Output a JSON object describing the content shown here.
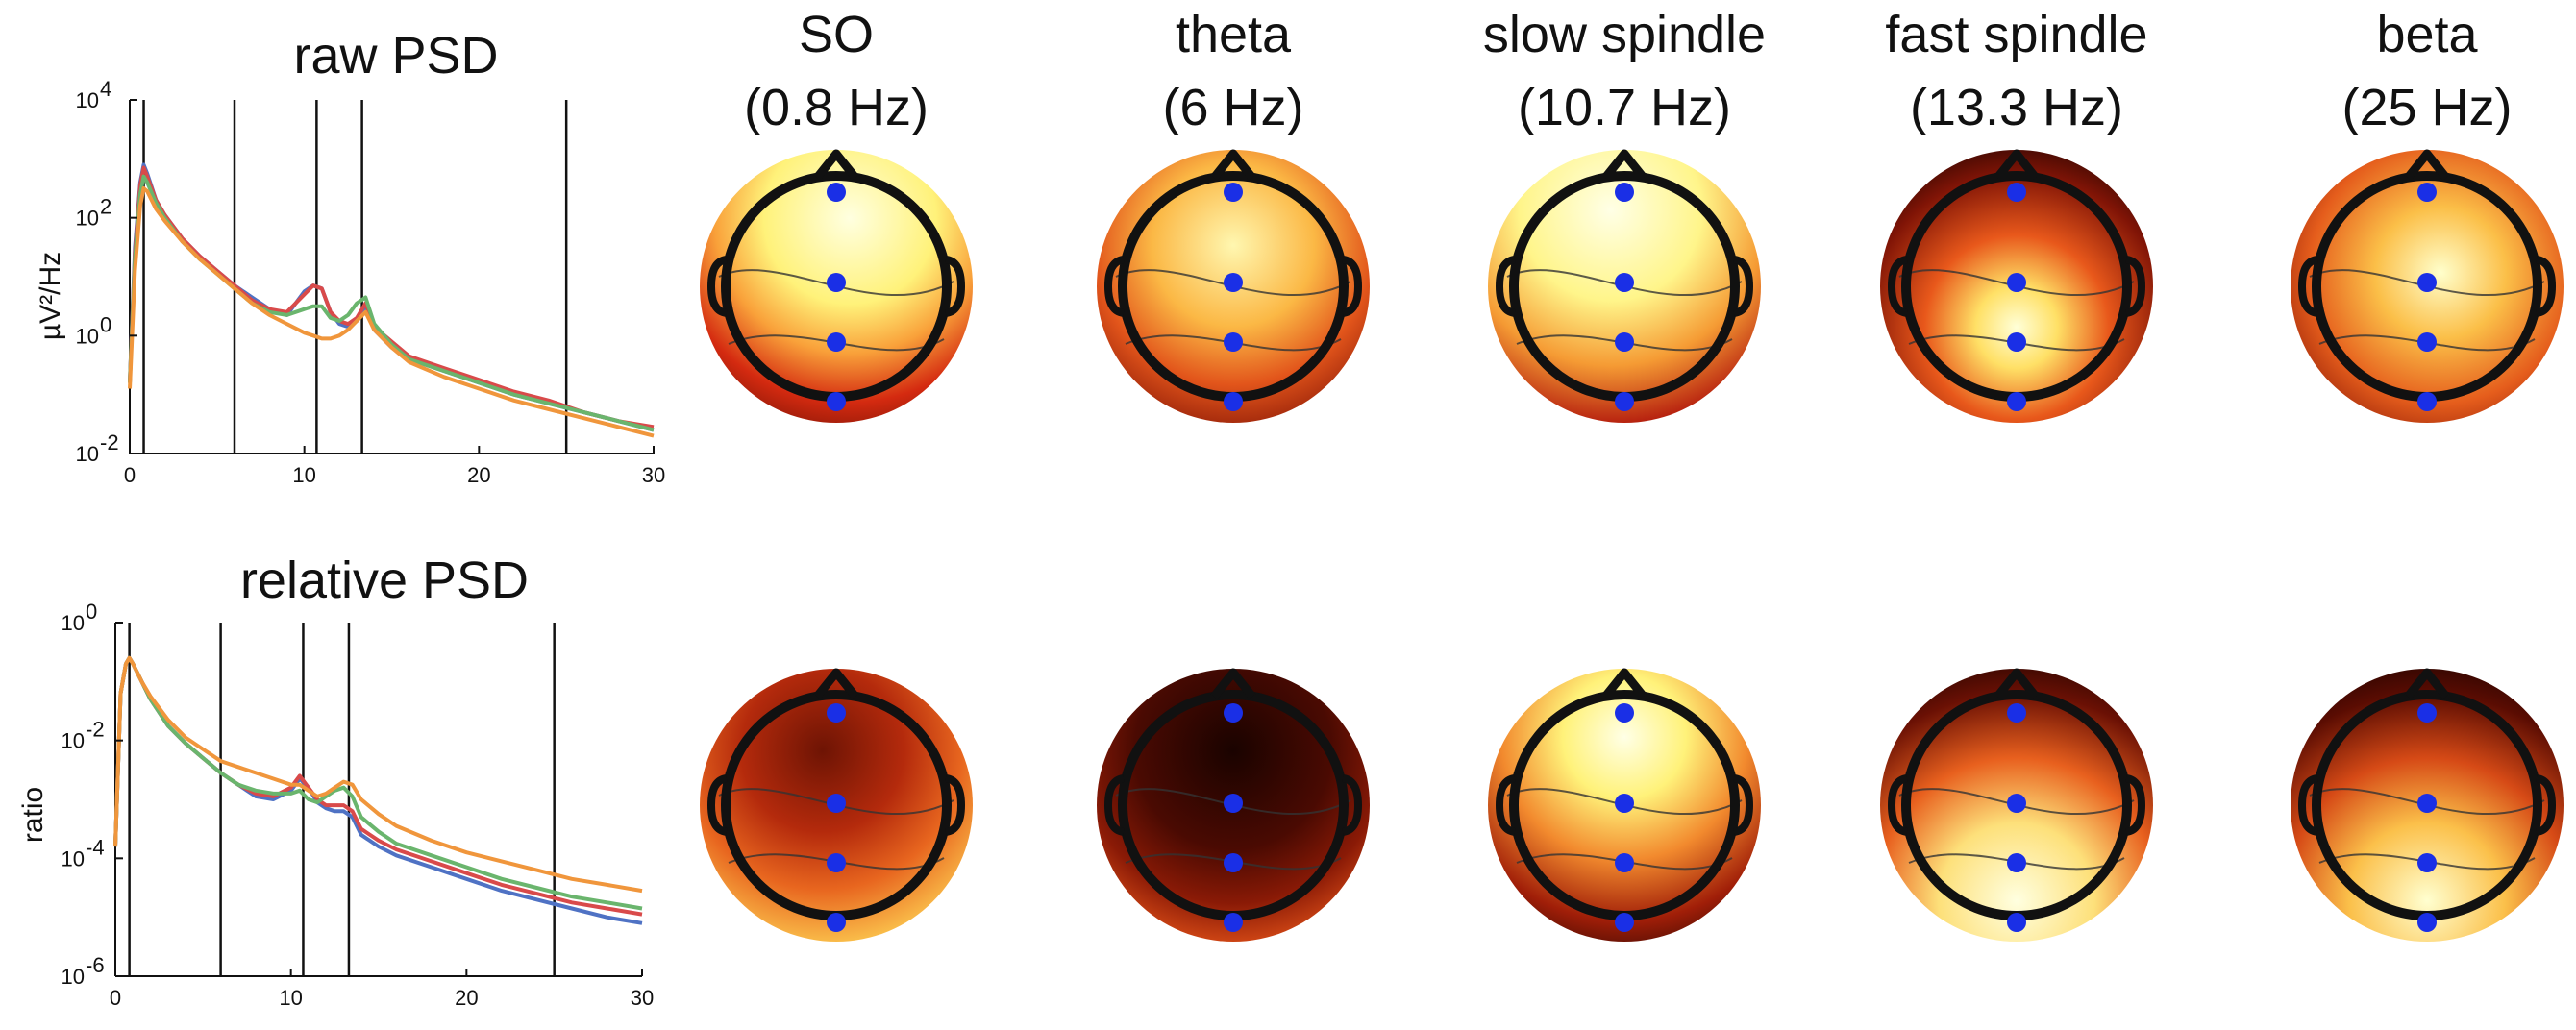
{
  "colors": {
    "series_colors": [
      "#4f72c4",
      "#d94a4a",
      "#6ab56d",
      "#f0963c"
    ],
    "electrode": "#1a2fe6",
    "head_outline": "#111111",
    "colormap": "hot"
  },
  "chart_data": [
    {
      "type": "line",
      "title": "raw PSD",
      "ylabel": "µV²/Hz",
      "xlim": [
        0,
        30
      ],
      "ylim_log10": [
        -2,
        4
      ],
      "yscale": "log",
      "x_ticks": [
        "0",
        "10",
        "20",
        "30"
      ],
      "y_tick_mantissa": [
        "10",
        "10",
        "10",
        "10"
      ],
      "y_tick_exponents": [
        "-2",
        "0",
        "2",
        "4"
      ],
      "vlines": [
        0.8,
        6,
        10.7,
        13.3,
        25
      ],
      "x": [
        0,
        0.3,
        0.6,
        0.8,
        1,
        1.5,
        2,
        3,
        4,
        5,
        6,
        7,
        8,
        9,
        10,
        10.5,
        11,
        11.5,
        12,
        12.5,
        13,
        13.5,
        14,
        15,
        16,
        18,
        20,
        22,
        24,
        26,
        28,
        30
      ],
      "series": [
        {
          "values_log10": [
            -0.8,
            1.5,
            2.6,
            2.9,
            2.75,
            2.3,
            2.05,
            1.65,
            1.35,
            1.1,
            0.85,
            0.65,
            0.45,
            0.35,
            0.75,
            0.85,
            0.8,
            0.4,
            0.2,
            0.15,
            0.25,
            0.45,
            0.1,
            -0.2,
            -0.4,
            -0.6,
            -0.8,
            -1.0,
            -1.15,
            -1.3,
            -1.45,
            -1.6
          ]
        },
        {
          "values_log10": [
            -0.8,
            1.4,
            2.55,
            2.85,
            2.7,
            2.3,
            2.05,
            1.65,
            1.35,
            1.1,
            0.85,
            0.6,
            0.45,
            0.4,
            0.7,
            0.85,
            0.8,
            0.4,
            0.25,
            0.2,
            0.3,
            0.55,
            0.15,
            -0.1,
            -0.35,
            -0.55,
            -0.75,
            -0.95,
            -1.1,
            -1.3,
            -1.45,
            -1.55
          ]
        },
        {
          "values_log10": [
            -0.8,
            1.3,
            2.4,
            2.7,
            2.6,
            2.25,
            2.0,
            1.6,
            1.3,
            1.05,
            0.8,
            0.55,
            0.4,
            0.35,
            0.45,
            0.5,
            0.5,
            0.3,
            0.25,
            0.35,
            0.55,
            0.65,
            0.2,
            -0.15,
            -0.4,
            -0.6,
            -0.8,
            -1.0,
            -1.15,
            -1.3,
            -1.45,
            -1.6
          ]
        },
        {
          "values_log10": [
            -0.9,
            1.1,
            2.2,
            2.5,
            2.45,
            2.15,
            1.95,
            1.6,
            1.3,
            1.05,
            0.8,
            0.55,
            0.35,
            0.2,
            0.05,
            0.0,
            -0.05,
            -0.05,
            0.0,
            0.1,
            0.25,
            0.4,
            0.1,
            -0.2,
            -0.45,
            -0.7,
            -0.9,
            -1.1,
            -1.25,
            -1.4,
            -1.55,
            -1.7
          ]
        }
      ]
    },
    {
      "type": "line",
      "title": "relative PSD",
      "ylabel": "ratio",
      "xlim": [
        0,
        30
      ],
      "ylim_log10": [
        -6,
        0
      ],
      "yscale": "log",
      "x_ticks": [
        "0",
        "10",
        "20",
        "30"
      ],
      "y_tick_mantissa": [
        "10",
        "10",
        "10",
        "10"
      ],
      "y_tick_exponents": [
        "-6",
        "-4",
        "-2",
        "0"
      ],
      "vlines": [
        0.8,
        6,
        10.7,
        13.3,
        25
      ],
      "x": [
        0,
        0.3,
        0.6,
        0.8,
        1,
        1.5,
        2,
        3,
        4,
        5,
        6,
        7,
        8,
        9,
        10,
        10.5,
        11,
        11.5,
        12,
        12.5,
        13,
        13.5,
        14,
        15,
        16,
        18,
        20,
        22,
        24,
        26,
        28,
        30
      ],
      "series": [
        {
          "values_log10": [
            -3.8,
            -1.2,
            -0.7,
            -0.6,
            -0.7,
            -1.0,
            -1.3,
            -1.75,
            -2.05,
            -2.3,
            -2.55,
            -2.75,
            -2.95,
            -3.0,
            -2.85,
            -2.65,
            -2.8,
            -3.05,
            -3.15,
            -3.2,
            -3.2,
            -3.3,
            -3.6,
            -3.8,
            -3.95,
            -4.15,
            -4.35,
            -4.55,
            -4.7,
            -4.85,
            -5.0,
            -5.1
          ]
        },
        {
          "values_log10": [
            -3.8,
            -1.2,
            -0.7,
            -0.6,
            -0.7,
            -1.0,
            -1.3,
            -1.75,
            -2.05,
            -2.3,
            -2.55,
            -2.75,
            -2.9,
            -2.95,
            -2.8,
            -2.6,
            -2.8,
            -3.0,
            -3.1,
            -3.1,
            -3.1,
            -3.2,
            -3.5,
            -3.7,
            -3.85,
            -4.05,
            -4.25,
            -4.45,
            -4.6,
            -4.75,
            -4.85,
            -4.95
          ]
        },
        {
          "values_log10": [
            -3.8,
            -1.2,
            -0.7,
            -0.6,
            -0.7,
            -1.0,
            -1.3,
            -1.75,
            -2.05,
            -2.3,
            -2.55,
            -2.75,
            -2.85,
            -2.9,
            -2.9,
            -2.85,
            -3.0,
            -3.05,
            -2.95,
            -2.85,
            -2.8,
            -2.95,
            -3.3,
            -3.55,
            -3.75,
            -3.95,
            -4.15,
            -4.35,
            -4.5,
            -4.65,
            -4.75,
            -4.85
          ]
        },
        {
          "values_log10": [
            -3.8,
            -1.2,
            -0.7,
            -0.6,
            -0.7,
            -1.0,
            -1.25,
            -1.65,
            -1.95,
            -2.15,
            -2.35,
            -2.45,
            -2.55,
            -2.65,
            -2.75,
            -2.75,
            -2.85,
            -2.95,
            -2.9,
            -2.8,
            -2.7,
            -2.75,
            -3.0,
            -3.25,
            -3.45,
            -3.7,
            -3.9,
            -4.05,
            -4.2,
            -4.35,
            -4.45,
            -4.55
          ]
        }
      ]
    }
  ],
  "topoplots": {
    "columns": [
      {
        "name": "SO",
        "freq": "(0.8 Hz)"
      },
      {
        "name": "theta",
        "freq": "(6 Hz)"
      },
      {
        "name": "slow spindle",
        "freq": "(10.7 Hz)"
      },
      {
        "name": "fast spindle",
        "freq": "(13.3 Hz)"
      },
      {
        "name": "beta",
        "freq": "(25 Hz)"
      }
    ],
    "electrode_count": 4
  }
}
